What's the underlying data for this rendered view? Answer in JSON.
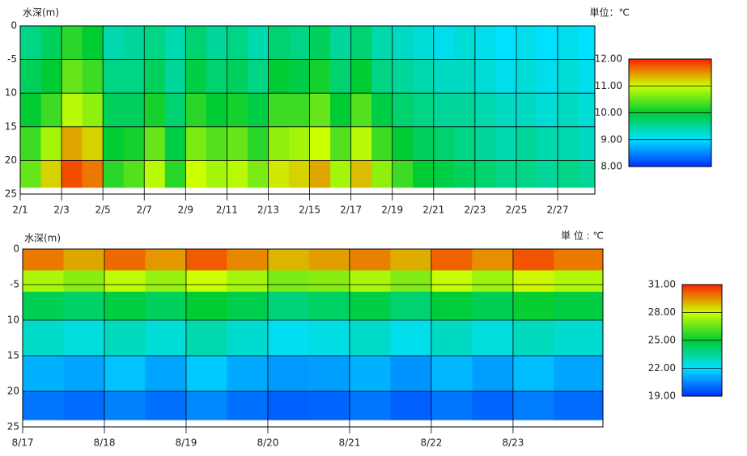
{
  "chart_data": [
    {
      "type": "heatmap",
      "ylabel": "水深(m)",
      "unit": "単位：℃",
      "xlim": [
        1,
        28.8
      ],
      "ylim": [
        0,
        25
      ],
      "xticks": [
        {
          "value": 1,
          "label": "2/1"
        },
        {
          "value": 3,
          "label": "2/3"
        },
        {
          "value": 5,
          "label": "2/5"
        },
        {
          "value": 7,
          "label": "2/7"
        },
        {
          "value": 9,
          "label": "2/9"
        },
        {
          "value": 11,
          "label": "2/11"
        },
        {
          "value": 13,
          "label": "2/13"
        },
        {
          "value": 15,
          "label": "2/15"
        },
        {
          "value": 17,
          "label": "2/17"
        },
        {
          "value": 19,
          "label": "2/19"
        },
        {
          "value": 21,
          "label": "2/21"
        },
        {
          "value": 23,
          "label": "2/23"
        },
        {
          "value": 25,
          "label": "2/25"
        },
        {
          "value": 27,
          "label": "2/27"
        }
      ],
      "yticks": [
        0,
        {
          "value": 5,
          "label": "-5"
        },
        10,
        15,
        20,
        25
      ],
      "x": [
        1,
        2,
        3,
        4,
        5,
        6,
        7,
        8,
        9,
        10,
        11,
        12,
        13,
        14,
        15,
        16,
        17,
        18,
        19,
        20,
        21,
        22,
        23,
        24,
        25,
        26,
        27,
        28
      ],
      "y_edges": [
        0,
        5,
        10,
        15,
        20,
        24
      ],
      "z": [
        [
          9.6,
          9.8,
          10.0,
          10.3,
          10.5
        ],
        [
          9.8,
          10.0,
          10.3,
          10.8,
          11.2
        ],
        [
          10.2,
          10.5,
          10.9,
          11.4,
          11.8
        ],
        [
          10.0,
          10.3,
          10.7,
          11.2,
          11.6
        ],
        [
          9.4,
          9.6,
          9.8,
          10.0,
          10.2
        ],
        [
          9.5,
          9.6,
          9.8,
          10.1,
          10.4
        ],
        [
          9.6,
          9.8,
          10.1,
          10.5,
          10.9
        ],
        [
          9.4,
          9.5,
          9.7,
          9.9,
          10.2
        ],
        [
          9.7,
          9.9,
          10.2,
          10.6,
          11.0
        ],
        [
          9.5,
          9.7,
          10.0,
          10.4,
          10.8
        ],
        [
          9.6,
          9.8,
          10.1,
          10.5,
          10.9
        ],
        [
          9.4,
          9.6,
          9.9,
          10.2,
          10.6
        ],
        [
          9.7,
          10.0,
          10.3,
          10.7,
          11.1
        ],
        [
          9.6,
          9.9,
          10.3,
          10.8,
          11.2
        ],
        [
          9.8,
          10.1,
          10.5,
          11.0,
          11.4
        ],
        [
          9.5,
          9.7,
          10.0,
          10.4,
          10.8
        ],
        [
          9.7,
          10.0,
          10.4,
          10.9,
          11.3
        ],
        [
          9.4,
          9.6,
          9.9,
          10.3,
          10.7
        ],
        [
          9.3,
          9.5,
          9.7,
          10.0,
          10.3
        ],
        [
          9.2,
          9.4,
          9.6,
          9.8,
          10.0
        ],
        [
          9.1,
          9.3,
          9.5,
          9.7,
          9.9
        ],
        [
          9.2,
          9.3,
          9.5,
          9.6,
          9.8
        ],
        [
          9.1,
          9.2,
          9.4,
          9.5,
          9.7
        ],
        [
          9.0,
          9.1,
          9.3,
          9.4,
          9.6
        ],
        [
          9.1,
          9.2,
          9.3,
          9.5,
          9.6
        ],
        [
          9.0,
          9.1,
          9.2,
          9.4,
          9.5
        ],
        [
          9.1,
          9.2,
          9.3,
          9.4,
          9.6
        ],
        [
          9.0,
          9.1,
          9.2,
          9.3,
          9.5
        ]
      ],
      "clim": [
        8,
        12
      ],
      "cticks": [
        {
          "value": 8,
          "label": "8.00"
        },
        {
          "value": 9,
          "label": "9.00"
        },
        {
          "value": 10,
          "label": "10.00"
        },
        {
          "value": 11,
          "label": "11.00"
        },
        {
          "value": 12,
          "label": "12.00"
        }
      ],
      "colors": [
        "#0030ff",
        "#00e0ff",
        "#00cc33",
        "#ccff00",
        "#ff2000"
      ]
    },
    {
      "type": "heatmap",
      "ylabel": "水深(m)",
      "unit": "単 位 : ℃",
      "xlim": [
        0,
        7.1
      ],
      "ylim": [
        0,
        25
      ],
      "xticks": [
        {
          "value": 0,
          "label": "8/17"
        },
        {
          "value": 1,
          "label": "8/18"
        },
        {
          "value": 2,
          "label": "8/19"
        },
        {
          "value": 3,
          "label": "8/20"
        },
        {
          "value": 4,
          "label": "8/21"
        },
        {
          "value": 5,
          "label": "8/22"
        },
        {
          "value": 6,
          "label": "8/23"
        }
      ],
      "yticks": [
        0,
        {
          "value": 5,
          "label": "-5"
        },
        10,
        15,
        20,
        25
      ],
      "x": [
        0,
        0.5,
        1,
        1.5,
        2,
        2.5,
        3,
        3.5,
        4,
        4.5,
        5,
        5.5,
        6,
        6.5
      ],
      "y_edges": [
        0,
        3,
        6,
        10,
        15,
        20,
        24
      ],
      "z": [
        [
          29.8,
          27.5,
          24.5,
          22.8,
          21.2,
          20.2
        ],
        [
          29.2,
          27.0,
          24.2,
          22.5,
          21.0,
          20.0
        ],
        [
          30.0,
          27.8,
          24.8,
          23.0,
          21.5,
          20.4
        ],
        [
          29.4,
          27.2,
          24.4,
          22.6,
          21.0,
          20.1
        ],
        [
          30.2,
          28.0,
          25.0,
          23.2,
          21.6,
          20.5
        ],
        [
          29.6,
          27.4,
          24.6,
          22.7,
          21.1,
          20.1
        ],
        [
          29.0,
          26.8,
          24.0,
          22.2,
          20.8,
          19.8
        ],
        [
          29.3,
          27.0,
          24.3,
          22.4,
          20.9,
          19.9
        ],
        [
          29.7,
          27.5,
          24.7,
          22.8,
          21.2,
          20.2
        ],
        [
          29.1,
          26.9,
          24.1,
          22.3,
          20.7,
          19.8
        ],
        [
          30.1,
          27.9,
          24.9,
          22.9,
          21.3,
          20.2
        ],
        [
          29.5,
          27.3,
          24.5,
          22.5,
          20.9,
          19.9
        ],
        [
          30.3,
          28.1,
          25.1,
          23.0,
          21.4,
          20.3
        ],
        [
          29.8,
          27.6,
          24.8,
          22.7,
          21.0,
          20.0
        ]
      ],
      "clim": [
        19,
        31
      ],
      "cticks": [
        {
          "value": 19,
          "label": "19.00"
        },
        {
          "value": 22,
          "label": "22.00"
        },
        {
          "value": 25,
          "label": "25.00"
        },
        {
          "value": 28,
          "label": "28.00"
        },
        {
          "value": 31,
          "label": "31.00"
        }
      ],
      "colors": [
        "#0030ff",
        "#00e0ff",
        "#00cc33",
        "#ccff00",
        "#ff2000"
      ]
    }
  ]
}
